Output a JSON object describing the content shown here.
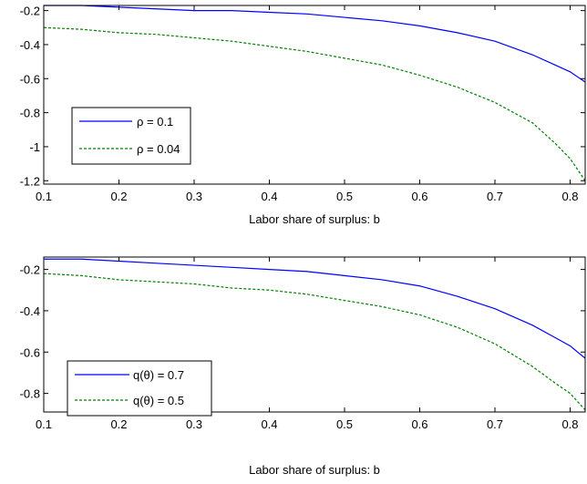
{
  "chart_data": [
    {
      "type": "line",
      "title": "",
      "xlabel": "Labor share of surplus: b",
      "ylabel": "",
      "xlim": [
        0.1,
        0.82
      ],
      "ylim": [
        -1.22,
        -0.17
      ],
      "xticks": [
        "0.1",
        "0.2",
        "0.3",
        "0.4",
        "0.5",
        "0.6",
        "0.7",
        "0.8"
      ],
      "yticks": [
        "-0.2",
        "-0.4",
        "-0.6",
        "-0.8",
        "-1",
        "-1.2"
      ],
      "grid": false,
      "legend_position": "lower-left",
      "series": [
        {
          "name": "ρ = 0.1",
          "color": "#0000ff",
          "style": "solid",
          "x": [
            0.1,
            0.15,
            0.2,
            0.25,
            0.3,
            0.35,
            0.4,
            0.45,
            0.5,
            0.55,
            0.6,
            0.65,
            0.7,
            0.75,
            0.78,
            0.8,
            0.82
          ],
          "y": [
            -0.17,
            -0.17,
            -0.18,
            -0.19,
            -0.2,
            -0.2,
            -0.21,
            -0.22,
            -0.24,
            -0.26,
            -0.29,
            -0.33,
            -0.38,
            -0.46,
            -0.52,
            -0.56,
            -0.62
          ]
        },
        {
          "name": "ρ = 0.04",
          "color": "#008000",
          "style": "dashed",
          "x": [
            0.1,
            0.15,
            0.2,
            0.25,
            0.3,
            0.35,
            0.4,
            0.45,
            0.5,
            0.55,
            0.6,
            0.65,
            0.7,
            0.75,
            0.78,
            0.8,
            0.82
          ],
          "y": [
            -0.3,
            -0.31,
            -0.33,
            -0.34,
            -0.36,
            -0.38,
            -0.41,
            -0.44,
            -0.48,
            -0.52,
            -0.58,
            -0.65,
            -0.74,
            -0.86,
            -0.98,
            -1.07,
            -1.2
          ]
        }
      ]
    },
    {
      "type": "line",
      "title": "",
      "xlabel": "Labor share of surplus: b",
      "ylabel": "",
      "xlim": [
        0.1,
        0.82
      ],
      "ylim": [
        -0.89,
        -0.14
      ],
      "xticks": [
        "0.1",
        "0.2",
        "0.3",
        "0.4",
        "0.5",
        "0.6",
        "0.7",
        "0.8"
      ],
      "yticks": [
        "-0.2",
        "-0.4",
        "-0.6",
        "-0.8"
      ],
      "grid": false,
      "legend_position": "lower-left",
      "series": [
        {
          "name": "q(θ) = 0.7",
          "color": "#0000ff",
          "style": "solid",
          "x": [
            0.1,
            0.15,
            0.2,
            0.25,
            0.3,
            0.35,
            0.4,
            0.45,
            0.5,
            0.55,
            0.6,
            0.65,
            0.7,
            0.75,
            0.78,
            0.8,
            0.82
          ],
          "y": [
            -0.15,
            -0.15,
            -0.16,
            -0.17,
            -0.18,
            -0.19,
            -0.2,
            -0.21,
            -0.23,
            -0.25,
            -0.28,
            -0.33,
            -0.39,
            -0.47,
            -0.53,
            -0.57,
            -0.63
          ]
        },
        {
          "name": "q(θ) = 0.5",
          "color": "#008000",
          "style": "dashed",
          "x": [
            0.1,
            0.15,
            0.2,
            0.25,
            0.3,
            0.35,
            0.4,
            0.45,
            0.5,
            0.55,
            0.6,
            0.65,
            0.7,
            0.75,
            0.78,
            0.8,
            0.82
          ],
          "y": [
            -0.22,
            -0.23,
            -0.25,
            -0.26,
            -0.27,
            -0.29,
            -0.3,
            -0.32,
            -0.35,
            -0.38,
            -0.42,
            -0.48,
            -0.56,
            -0.67,
            -0.75,
            -0.8,
            -0.88
          ]
        }
      ]
    }
  ]
}
